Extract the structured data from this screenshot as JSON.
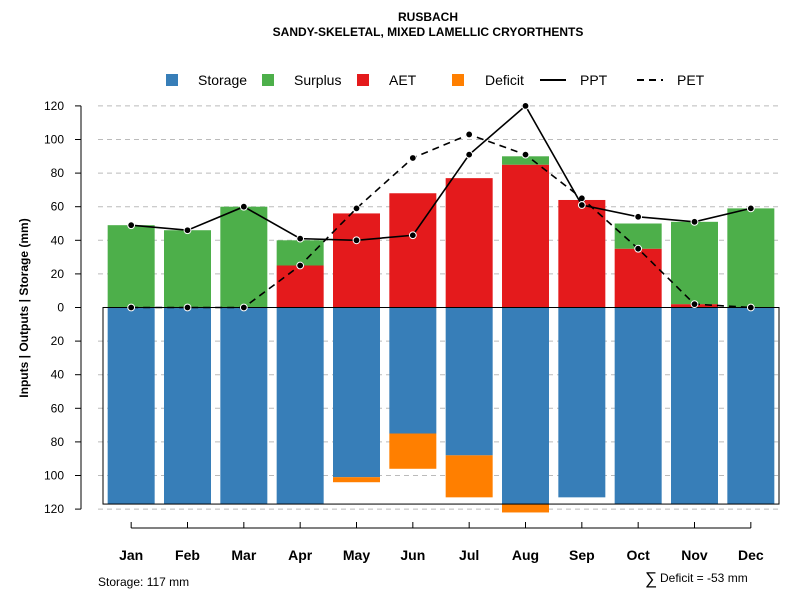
{
  "chart_data": {
    "type": "bar",
    "title": "RUSBACH",
    "subtitle": "SANDY-SKELETAL, MIXED LAMELLIC CRYORTHENTS",
    "ylabel": "Inputs | Outputs | Storage    (mm)",
    "categories": [
      "Jan",
      "Feb",
      "Mar",
      "Apr",
      "May",
      "Jun",
      "Jul",
      "Aug",
      "Sep",
      "Oct",
      "Nov",
      "Dec"
    ],
    "ylim": [
      -125,
      125
    ],
    "y_ticks": [
      120,
      100,
      80,
      60,
      40,
      20,
      0,
      -20,
      -40,
      -60,
      -80,
      -100,
      -120
    ],
    "y_tick_labels": [
      "120",
      "100",
      "80",
      "60",
      "40",
      "20",
      "0",
      "20",
      "40",
      "60",
      "80",
      "100",
      "120"
    ],
    "grid": true,
    "legend_position": "top",
    "legend": [
      {
        "label": "Storage",
        "kind": "box",
        "color": "#377EB8"
      },
      {
        "label": "Surplus",
        "kind": "box",
        "color": "#4DAF4A"
      },
      {
        "label": "AET",
        "kind": "box",
        "color": "#E41A1C"
      },
      {
        "label": "Deficit",
        "kind": "box",
        "color": "#FF7F00"
      },
      {
        "label": "PPT",
        "kind": "solid-line",
        "color": "#000000"
      },
      {
        "label": "PET",
        "kind": "dashed-line",
        "color": "#000000"
      }
    ],
    "colors": {
      "storage": "#377EB8",
      "surplus": "#4DAF4A",
      "aet": "#E41A1C",
      "deficit": "#FF7F00",
      "line": "#000000",
      "grid": "#bbbbbb"
    },
    "storage_capacity": 117,
    "series": [
      {
        "name": "Storage",
        "values": [
          117,
          117,
          117,
          117,
          101,
          75,
          88,
          117,
          113,
          117,
          117,
          117
        ]
      },
      {
        "name": "Deficit",
        "values": [
          0,
          0,
          0,
          0,
          3,
          21,
          25,
          5,
          0,
          0,
          0,
          0
        ]
      },
      {
        "name": "AET",
        "values": [
          0,
          0,
          0,
          25,
          56,
          68,
          77,
          85,
          64,
          35,
          2,
          0
        ]
      },
      {
        "name": "Surplus",
        "values": [
          49,
          46,
          60,
          15,
          0,
          0,
          0,
          5,
          0,
          15,
          49,
          59
        ]
      },
      {
        "name": "PPT",
        "values": [
          49,
          46,
          60,
          41,
          40,
          43,
          91,
          120,
          61,
          54,
          51,
          59
        ]
      },
      {
        "name": "PET",
        "values": [
          0,
          0,
          0,
          25,
          59,
          89,
          103,
          91,
          65,
          35,
          2,
          0
        ]
      }
    ]
  },
  "footer": {
    "storage_text": "Storage: 117 mm",
    "deficit_symbol": "∑",
    "deficit_text": "Deficit = -53 mm"
  }
}
